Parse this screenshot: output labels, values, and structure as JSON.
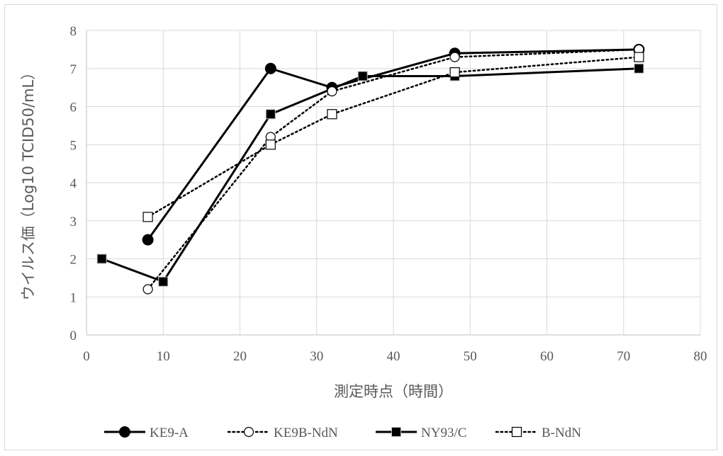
{
  "chart_data": {
    "type": "line",
    "xlabel": "測定時点（時間）",
    "ylabel": "ウイルス価（Log10 TCID50/mL）",
    "xlim": [
      0,
      80
    ],
    "ylim": [
      0,
      8
    ],
    "xticks": [
      0,
      10,
      20,
      30,
      40,
      50,
      60,
      70,
      80
    ],
    "yticks": [
      0,
      1,
      2,
      3,
      4,
      5,
      6,
      7,
      8
    ],
    "grid": true,
    "legend_position": "bottom",
    "series": [
      {
        "name": "KE9-A",
        "style": "solid",
        "marker": "filled-circle",
        "color": "#000000",
        "x": [
          8,
          24,
          32,
          48,
          72
        ],
        "y": [
          2.5,
          7.0,
          6.5,
          7.4,
          7.5
        ]
      },
      {
        "name": "KE9B-NdN",
        "style": "dotted",
        "marker": "open-circle",
        "color": "#000000",
        "x": [
          8,
          24,
          32,
          48,
          72
        ],
        "y": [
          1.2,
          5.2,
          6.4,
          7.3,
          7.5
        ]
      },
      {
        "name": "NY93/C",
        "style": "solid",
        "marker": "filled-square",
        "color": "#000000",
        "x": [
          2,
          10,
          24,
          36,
          48,
          72
        ],
        "y": [
          2.0,
          1.4,
          5.8,
          6.8,
          6.8,
          7.0
        ]
      },
      {
        "name": "B-NdN",
        "style": "dotted",
        "marker": "open-square",
        "color": "#000000",
        "x": [
          8,
          24,
          32,
          48,
          72
        ],
        "y": [
          3.1,
          5.0,
          5.8,
          6.9,
          7.3
        ]
      }
    ]
  }
}
